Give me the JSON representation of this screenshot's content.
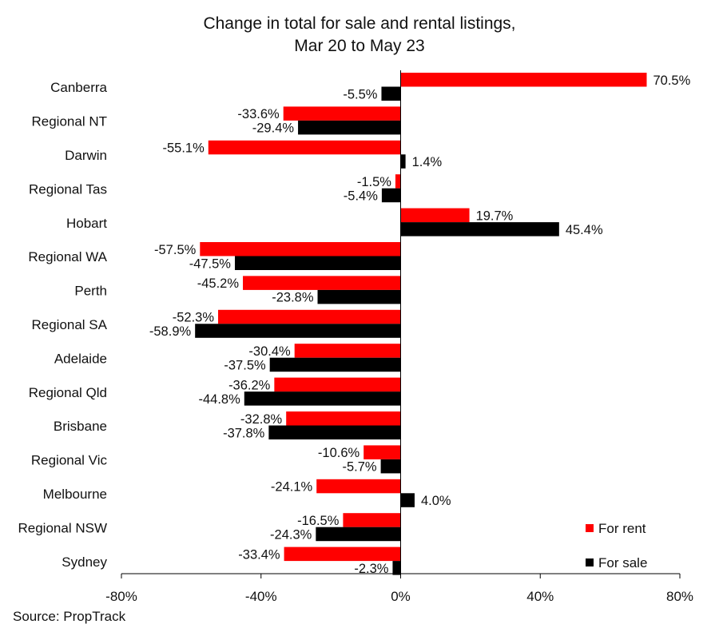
{
  "chart_data": {
    "type": "bar",
    "orientation": "horizontal",
    "title_line1": "Change in total for sale and rental listings,",
    "title_line2": "Mar 20 to May 23",
    "categories": [
      "Canberra",
      "Regional NT",
      "Darwin",
      "Regional Tas",
      "Hobart",
      "Regional WA",
      "Perth",
      "Regional SA",
      "Adelaide",
      "Regional Qld",
      "Brisbane",
      "Regional Vic",
      "Melbourne",
      "Regional NSW",
      "Sydney"
    ],
    "series": [
      {
        "name": "For rent",
        "color": "#ff0000",
        "values": [
          70.5,
          -33.6,
          -55.1,
          -1.5,
          19.7,
          -57.5,
          -45.2,
          -52.3,
          -30.4,
          -36.2,
          -32.8,
          -10.6,
          -24.1,
          -16.5,
          -33.4
        ]
      },
      {
        "name": "For sale",
        "color": "#000000",
        "values": [
          -5.5,
          -29.4,
          1.4,
          -5.4,
          45.4,
          -47.5,
          -23.8,
          -58.9,
          -37.5,
          -44.8,
          -37.8,
          -5.7,
          4.0,
          -24.3,
          -2.3
        ]
      }
    ],
    "xlim": [
      -80,
      80
    ],
    "xticks": [
      -80,
      -40,
      0,
      40,
      80
    ],
    "xtick_labels": [
      "-80%",
      "-40%",
      "0%",
      "40%",
      "80%"
    ],
    "value_labels": {
      "For rent": [
        "70.5%",
        "-33.6%",
        "-55.1%",
        "-1.5%",
        "19.7%",
        "-57.5%",
        "-45.2%",
        "-52.3%",
        "-30.4%",
        "-36.2%",
        "-32.8%",
        "-10.6%",
        "-24.1%",
        "-16.5%",
        "-33.4%"
      ],
      "For sale": [
        "-5.5%",
        "-29.4%",
        "1.4%",
        "-5.4%",
        "45.4%",
        "-47.5%",
        "-23.8%",
        "-58.9%",
        "-37.5%",
        "-44.8%",
        "-37.8%",
        "-5.7%",
        "4.0%",
        "-24.3%",
        "-2.3%"
      ]
    },
    "legend_position": "bottom-right",
    "grid": false
  },
  "source": "Source: PropTrack"
}
